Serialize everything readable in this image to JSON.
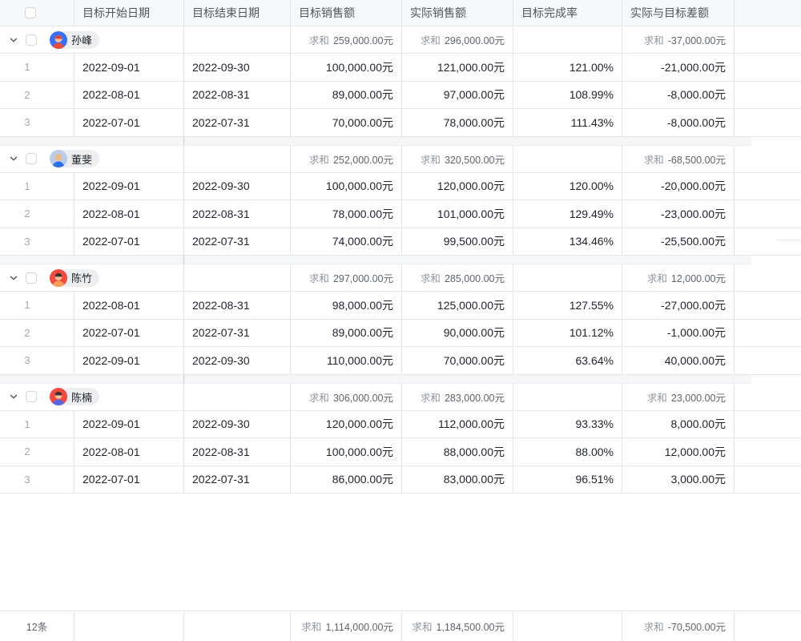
{
  "table": {
    "columns": [
      "目标开始日期",
      "目标结束日期",
      "目标销售额",
      "实际销售额",
      "目标完成率",
      "实际与目标差额"
    ],
    "sum_label": "求和",
    "groups": [
      {
        "name": "孙峰",
        "avatar": {
          "bg": "#3370ff",
          "hair": "#d9453a",
          "skin": "#f6c09a",
          "shirt": "#e64b3c"
        },
        "sums": {
          "target": "259,000.00元",
          "actual": "296,000.00元",
          "diff": "-37,000.00元"
        },
        "rows": [
          {
            "no": "1",
            "start": "2022-09-01",
            "end": "2022-09-30",
            "target": "100,000.00元",
            "actual": "121,000.00元",
            "rate": "121.00%",
            "diff": "-21,000.00元"
          },
          {
            "no": "2",
            "start": "2022-08-01",
            "end": "2022-08-31",
            "target": "89,000.00元",
            "actual": "97,000.00元",
            "rate": "108.99%",
            "diff": "-8,000.00元"
          },
          {
            "no": "3",
            "start": "2022-07-01",
            "end": "2022-07-31",
            "target": "70,000.00元",
            "actual": "78,000.00元",
            "rate": "111.43%",
            "diff": "-8,000.00元"
          }
        ]
      },
      {
        "name": "董斐",
        "avatar": {
          "bg": "#b9cdea",
          "hair": "#eab98c",
          "skin": "#eab98c",
          "shirt": "#2b6fe4"
        },
        "sums": {
          "target": "252,000.00元",
          "actual": "320,500.00元",
          "diff": "-68,500.00元"
        },
        "rows": [
          {
            "no": "1",
            "start": "2022-09-01",
            "end": "2022-09-30",
            "target": "100,000.00元",
            "actual": "120,000.00元",
            "rate": "120.00%",
            "diff": "-20,000.00元"
          },
          {
            "no": "2",
            "start": "2022-08-01",
            "end": "2022-08-31",
            "target": "78,000.00元",
            "actual": "101,000.00元",
            "rate": "129.49%",
            "diff": "-23,000.00元"
          },
          {
            "no": "3",
            "start": "2022-07-01",
            "end": "2022-07-31",
            "target": "74,000.00元",
            "actual": "99,500.00元",
            "rate": "134.46%",
            "diff": "-25,500.00元"
          }
        ]
      },
      {
        "name": "陈竹",
        "avatar": {
          "bg": "#f5493d",
          "hair": "#42302e",
          "skin": "#f6c09a",
          "shirt": "#f2a05c"
        },
        "sums": {
          "target": "297,000.00元",
          "actual": "285,000.00元",
          "diff": "12,000.00元"
        },
        "rows": [
          {
            "no": "1",
            "start": "2022-08-01",
            "end": "2022-08-31",
            "target": "98,000.00元",
            "actual": "125,000.00元",
            "rate": "127.55%",
            "diff": "-27,000.00元"
          },
          {
            "no": "2",
            "start": "2022-07-01",
            "end": "2022-07-31",
            "target": "89,000.00元",
            "actual": "90,000.00元",
            "rate": "101.12%",
            "diff": "-1,000.00元"
          },
          {
            "no": "3",
            "start": "2022-09-01",
            "end": "2022-09-30",
            "target": "110,000.00元",
            "actual": "70,000.00元",
            "rate": "63.64%",
            "diff": "40,000.00元"
          }
        ]
      },
      {
        "name": "陈楠",
        "avatar": {
          "bg": "#f5493d",
          "hair": "#3a3136",
          "skin": "#f6c09a",
          "shirt": "#5867e8"
        },
        "sums": {
          "target": "306,000.00元",
          "actual": "283,000.00元",
          "diff": "23,000.00元"
        },
        "rows": [
          {
            "no": "1",
            "start": "2022-09-01",
            "end": "2022-09-30",
            "target": "120,000.00元",
            "actual": "112,000.00元",
            "rate": "93.33%",
            "diff": "8,000.00元"
          },
          {
            "no": "2",
            "start": "2022-08-01",
            "end": "2022-08-31",
            "target": "100,000.00元",
            "actual": "88,000.00元",
            "rate": "88.00%",
            "diff": "12,000.00元"
          },
          {
            "no": "3",
            "start": "2022-07-01",
            "end": "2022-07-31",
            "target": "86,000.00元",
            "actual": "83,000.00元",
            "rate": "96.51%",
            "diff": "3,000.00元"
          }
        ]
      }
    ],
    "footer": {
      "count": "12条",
      "target_sum": "1,114,000.00元",
      "actual_sum": "1,184,500.00元",
      "diff_sum": "-70,500.00元"
    }
  }
}
